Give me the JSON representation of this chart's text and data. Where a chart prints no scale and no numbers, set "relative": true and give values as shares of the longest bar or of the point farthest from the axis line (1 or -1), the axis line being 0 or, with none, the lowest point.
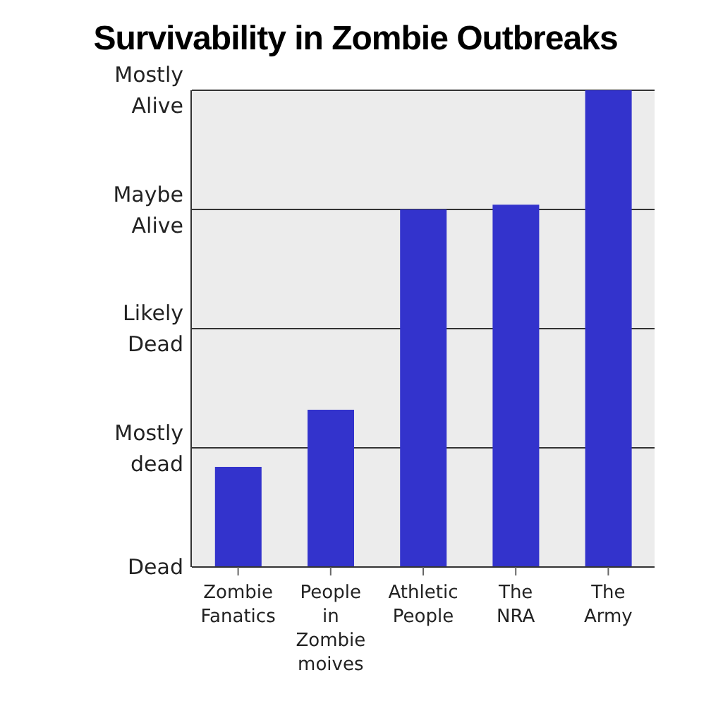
{
  "chart_data": {
    "type": "bar",
    "title": "Survivability in Zombie Outbreaks",
    "categories": [
      "Zombie Fanatics",
      "People in Zombie moives",
      "Athletic People",
      "The NRA",
      "The Army"
    ],
    "values": [
      0.21,
      0.33,
      0.75,
      0.76,
      1
    ],
    "color": "#3333cc",
    "relative": true,
    "annotations": [
      "Dead",
      "Mostly dead",
      "Likely Dead",
      "Maybe Alive",
      "Mostly Alive"
    ],
    "grid": "y"
  }
}
